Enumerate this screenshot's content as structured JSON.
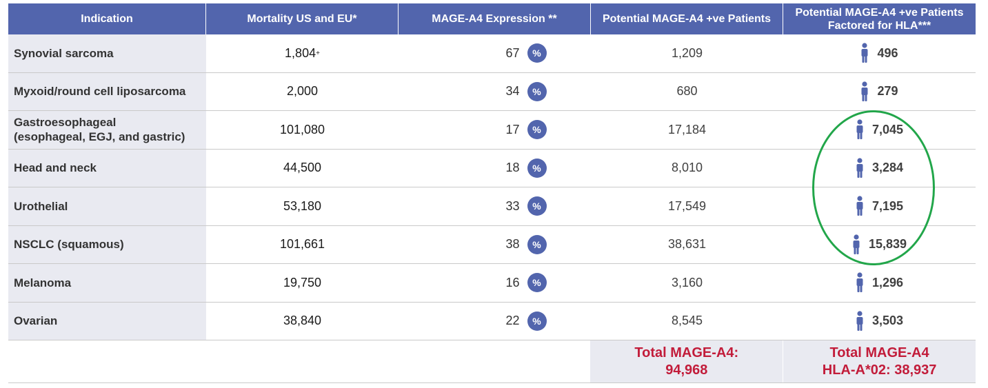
{
  "columns": {
    "indication": "Indication",
    "mortality": "Mortality US and EU*",
    "expression": "MAGE-A4 Expression **",
    "potential": "Potential MAGE-A4 +ve Patients",
    "hla_line1": "Potential MAGE-A4 +ve Patients",
    "hla_line2": "Factored for HLA***"
  },
  "rows": [
    {
      "indication_line1": "Synovial sarcoma",
      "indication_line2": "",
      "mortality": "1,804",
      "mortality_sup": "+",
      "expression": "67",
      "potential": "1,209",
      "hla": "496"
    },
    {
      "indication_line1": "Myxoid/round cell liposarcoma",
      "indication_line2": "",
      "mortality": "2,000",
      "mortality_sup": "",
      "expression": "34",
      "potential": "680",
      "hla": "279"
    },
    {
      "indication_line1": "Gastroesophageal",
      "indication_line2": "(esophageal, EGJ, and gastric)",
      "mortality": "101,080",
      "mortality_sup": "",
      "expression": "17",
      "potential": "17,184",
      "hla": "7,045"
    },
    {
      "indication_line1": "Head and neck",
      "indication_line2": "",
      "mortality": "44,500",
      "mortality_sup": "",
      "expression": "18",
      "potential": "8,010",
      "hla": "3,284"
    },
    {
      "indication_line1": "Urothelial",
      "indication_line2": "",
      "mortality": "53,180",
      "mortality_sup": "",
      "expression": "33",
      "potential": "17,549",
      "hla": "7,195"
    },
    {
      "indication_line1": "NSCLC (squamous)",
      "indication_line2": "",
      "mortality": "101,661",
      "mortality_sup": "",
      "expression": "38",
      "potential": "38,631",
      "hla": "15,839"
    },
    {
      "indication_line1": "Melanoma",
      "indication_line2": "",
      "mortality": "19,750",
      "mortality_sup": "",
      "expression": "16",
      "potential": "3,160",
      "hla": "1,296"
    },
    {
      "indication_line1": "Ovarian",
      "indication_line2": "",
      "mortality": "38,840",
      "mortality_sup": "",
      "expression": "22",
      "potential": "8,545",
      "hla": "3,503"
    }
  ],
  "percent_symbol": "%",
  "totals": {
    "potential_line1": "Total MAGE-A4:",
    "potential_line2": "94,968",
    "hla_line1": "Total MAGE-A4",
    "hla_line2": "HLA-A*02: 38,937"
  },
  "colors": {
    "header_bg": "#5265ad",
    "indication_bg": "#e9eaf1",
    "total_text": "#c21c3a",
    "highlight_circle": "#22a64a"
  },
  "icons": {
    "percent": "percent-badge-icon",
    "person": "person-icon"
  }
}
